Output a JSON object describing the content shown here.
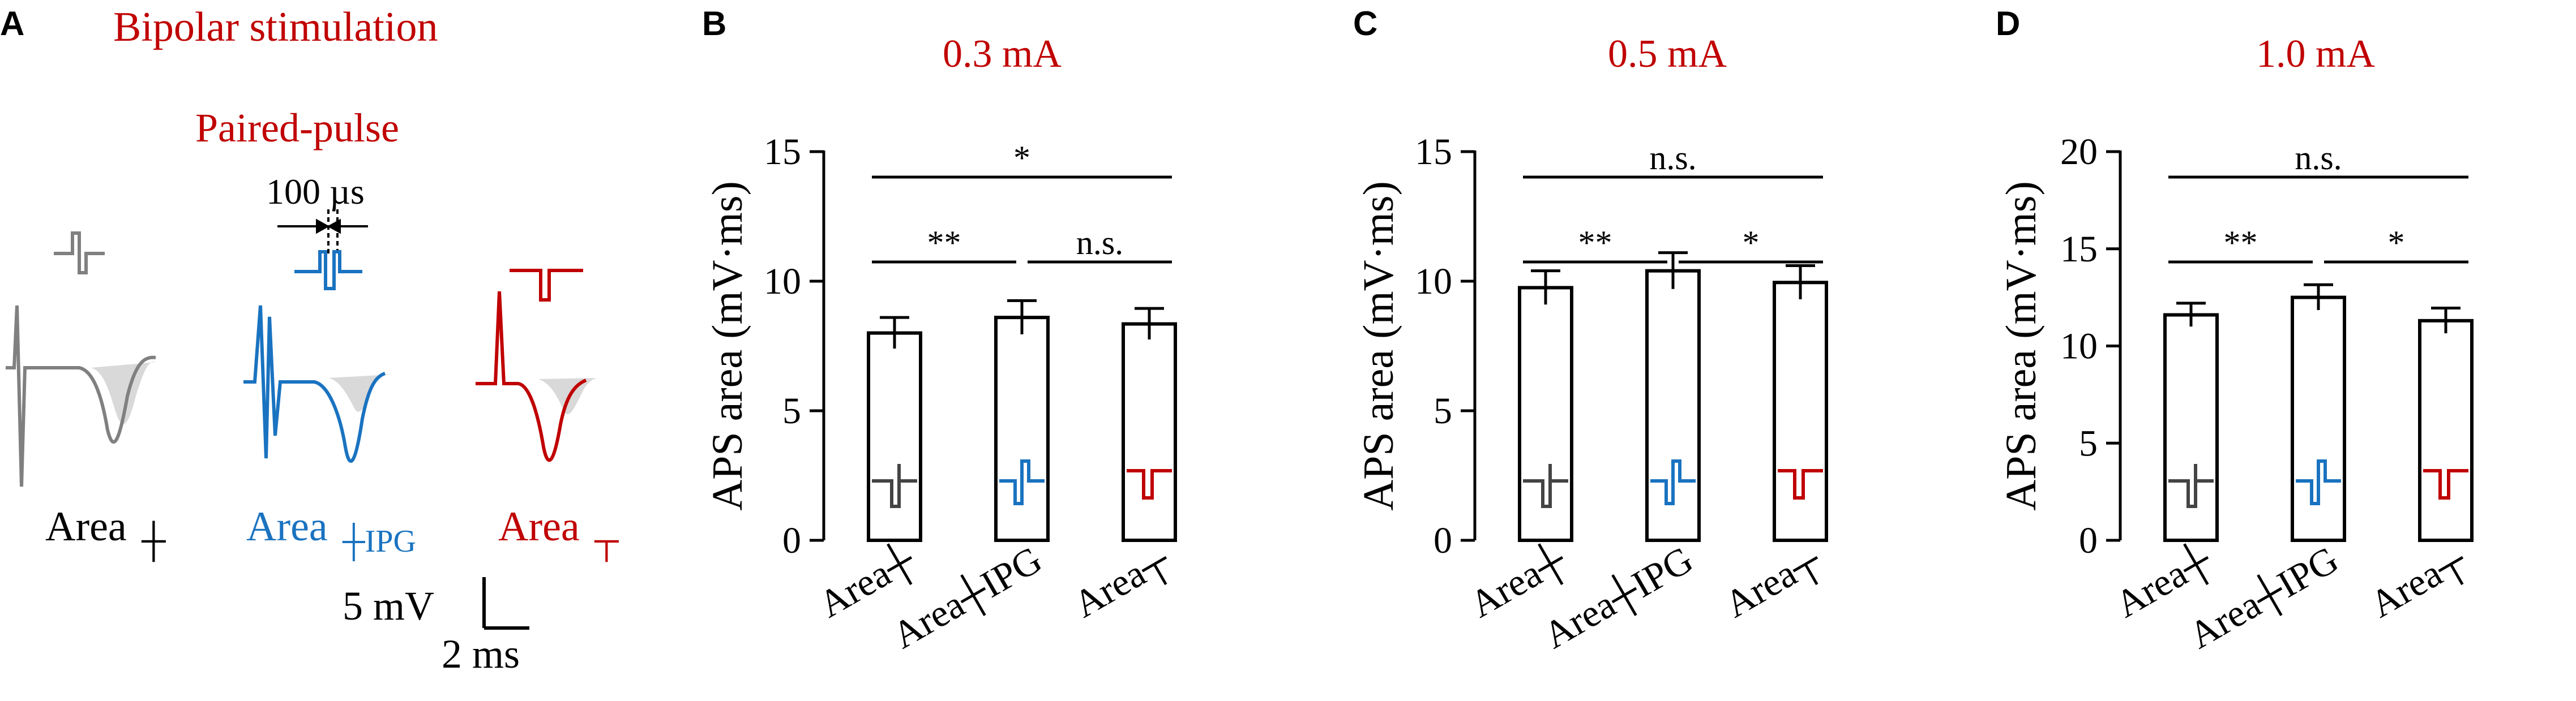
{
  "colors": {
    "gray": "#808080",
    "blue": "#1a73c0",
    "red": "#c00000",
    "dark": "#444444"
  },
  "panelA": {
    "letter": "A",
    "title": "Bipolar stimulation",
    "subtitle": "Paired-pulse",
    "interval": "100 µs",
    "area_base": "Area",
    "labels": [
      {
        "base": "Area",
        "sub": "┼",
        "color": "#000000"
      },
      {
        "base": "Area",
        "sub": "┼IPG",
        "color": "#1a73c0"
      },
      {
        "base": "Area",
        "sub": "┬",
        "color": "#c00000"
      }
    ],
    "scale_v": "5 mV",
    "scale_t": "2 ms"
  },
  "chart_data": [
    {
      "type": "bar",
      "panel": "B",
      "title": "0.3 mA",
      "ylabel": "APS area (mV·ms)",
      "categories": [
        "Area┼",
        "Area┼IPG",
        "Area┬"
      ],
      "values": [
        8.0,
        8.6,
        8.35
      ],
      "errors": [
        0.6,
        0.65,
        0.6
      ],
      "ylim": [
        0,
        15
      ],
      "yticks": [
        0,
        5,
        10,
        15
      ],
      "significance": [
        {
          "from": 0,
          "to": 1,
          "label": "**"
        },
        {
          "from": 1,
          "to": 2,
          "label": "n.s."
        },
        {
          "from": 0,
          "to": 2,
          "label": "*"
        }
      ]
    },
    {
      "type": "bar",
      "panel": "C",
      "title": "0.5 mA",
      "ylabel": "APS area (mV·ms)",
      "categories": [
        "Area┼",
        "Area┼IPG",
        "Area┬"
      ],
      "values": [
        9.75,
        10.4,
        9.95
      ],
      "errors": [
        0.65,
        0.7,
        0.65
      ],
      "ylim": [
        0,
        15
      ],
      "yticks": [
        0,
        5,
        10,
        15
      ],
      "significance": [
        {
          "from": 0,
          "to": 1,
          "label": "**"
        },
        {
          "from": 1,
          "to": 2,
          "label": "*"
        },
        {
          "from": 0,
          "to": 2,
          "label": "n.s."
        }
      ]
    },
    {
      "type": "bar",
      "panel": "D",
      "title": "1.0 mA",
      "ylabel": "APS area (mV·ms)",
      "categories": [
        "Area┼",
        "Area┼IPG",
        "Area┬"
      ],
      "values": [
        11.6,
        12.5,
        11.3
      ],
      "errors": [
        0.6,
        0.65,
        0.65
      ],
      "ylim": [
        0,
        20
      ],
      "yticks": [
        0,
        5,
        10,
        15,
        20
      ],
      "significance": [
        {
          "from": 0,
          "to": 1,
          "label": "**"
        },
        {
          "from": 1,
          "to": 2,
          "label": "*"
        },
        {
          "from": 0,
          "to": 2,
          "label": "n.s."
        }
      ]
    }
  ]
}
